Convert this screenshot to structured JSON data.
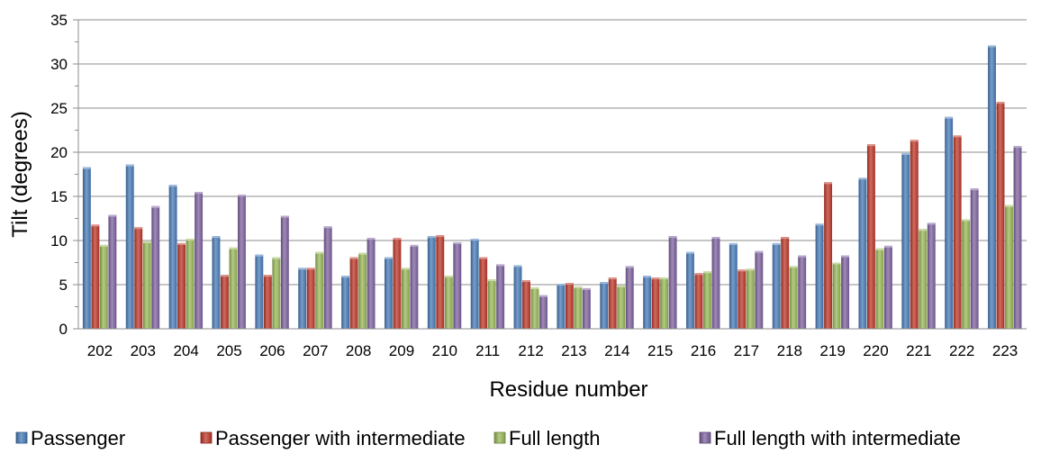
{
  "chart_data": {
    "type": "bar",
    "title": "",
    "xlabel": "Residue number",
    "ylabel": "Tilt (degrees)",
    "ylim": [
      0,
      35
    ],
    "yticks": [
      "0",
      "5",
      "10",
      "15",
      "20",
      "25",
      "30",
      "35"
    ],
    "grid": true,
    "legend_position": "bottom",
    "categories": [
      "202",
      "203",
      "204",
      "205",
      "206",
      "207",
      "208",
      "209",
      "210",
      "211",
      "212",
      "213",
      "214",
      "215",
      "216",
      "217",
      "218",
      "219",
      "220",
      "221",
      "222",
      "223"
    ],
    "series": [
      {
        "name": "Passenger",
        "color": "#4A7EBB",
        "values": [
          18.3,
          18.6,
          16.3,
          10.5,
          8.4,
          6.9,
          6.0,
          8.1,
          10.5,
          10.2,
          7.2,
          5.1,
          5.3,
          6.0,
          8.7,
          9.7,
          9.7,
          11.9,
          17.1,
          19.9,
          24.0,
          32.1
        ]
      },
      {
        "name": "Passenger with intermediate",
        "color": "#C0392B",
        "values": [
          11.8,
          11.5,
          9.7,
          6.1,
          6.1,
          6.9,
          8.1,
          10.3,
          10.6,
          8.1,
          5.5,
          5.2,
          5.8,
          5.8,
          6.3,
          6.7,
          10.4,
          16.6,
          20.9,
          21.4,
          21.9,
          25.7
        ]
      },
      {
        "name": "Full length",
        "color": "#9BBB59",
        "values": [
          9.5,
          9.9,
          10.2,
          9.2,
          8.1,
          8.7,
          8.6,
          6.9,
          6.0,
          5.6,
          4.7,
          4.8,
          4.9,
          5.8,
          6.5,
          6.8,
          7.1,
          7.5,
          9.1,
          11.3,
          12.4,
          14.0
        ]
      },
      {
        "name": "Full length with intermediate",
        "color": "#8064A2",
        "values": [
          12.9,
          13.9,
          15.5,
          15.2,
          12.8,
          11.6,
          10.3,
          9.5,
          9.8,
          7.3,
          3.8,
          4.6,
          7.1,
          10.5,
          10.4,
          8.8,
          8.3,
          8.3,
          9.4,
          12.0,
          15.9,
          20.7
        ]
      }
    ]
  }
}
